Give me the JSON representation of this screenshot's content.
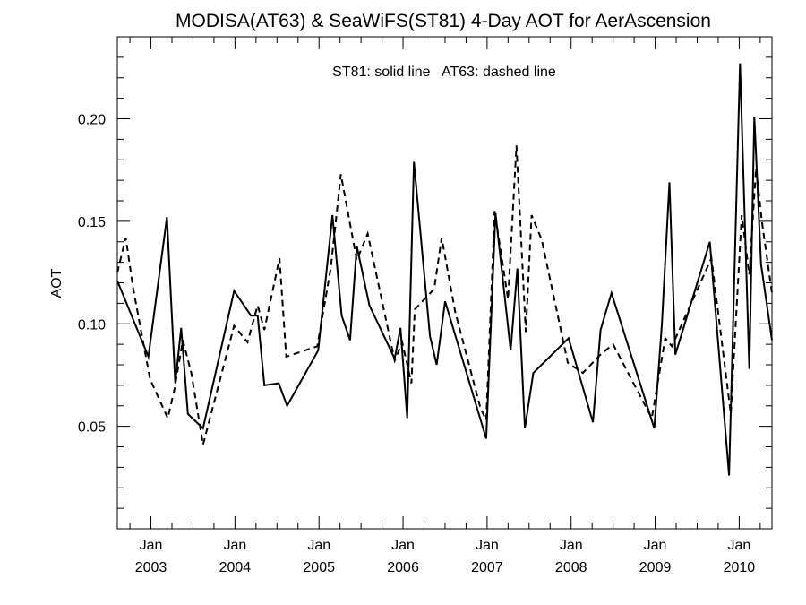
{
  "chart_data": {
    "type": "line",
    "title": "MODISA(AT63) & SeaWiFS(ST81) 4-Day AOT for AerAscension",
    "legend_text": "ST81: solid line   AT63: dashed line",
    "ylabel": "AOT",
    "xlabel": "",
    "xlim": [
      2002.6,
      2010.39
    ],
    "ylim": [
      0,
      0.24
    ],
    "y_ticks": [
      {
        "value": 0.05,
        "label": "0.05"
      },
      {
        "value": 0.1,
        "label": "0.10"
      },
      {
        "value": 0.15,
        "label": "0.15"
      },
      {
        "value": 0.2,
        "label": "0.20"
      }
    ],
    "x_ticks": [
      {
        "value": 2003.0,
        "month": "Jan",
        "year": "2003"
      },
      {
        "value": 2004.0,
        "month": "Jan",
        "year": "2004"
      },
      {
        "value": 2005.0,
        "month": "Jan",
        "year": "2005"
      },
      {
        "value": 2006.0,
        "month": "Jan",
        "year": "2006"
      },
      {
        "value": 2007.0,
        "month": "Jan",
        "year": "2007"
      },
      {
        "value": 2008.0,
        "month": "Jan",
        "year": "2008"
      },
      {
        "value": 2009.0,
        "month": "Jan",
        "year": "2009"
      },
      {
        "value": 2010.0,
        "month": "Jan",
        "year": "2010"
      }
    ],
    "series": [
      {
        "id": "ST81",
        "style": "solid",
        "color": "#000000",
        "x": [
          2002.6,
          2002.97,
          2003.19,
          2003.29,
          2003.36,
          2003.44,
          2003.62,
          2003.99,
          2004.19,
          2004.27,
          2004.35,
          2004.52,
          2004.62,
          2004.99,
          2005.16,
          2005.27,
          2005.37,
          2005.45,
          2005.6,
          2005.9,
          2005.97,
          2006.05,
          2006.13,
          2006.32,
          2006.4,
          2006.5,
          2006.99,
          2007.1,
          2007.28,
          2007.36,
          2007.45,
          2007.55,
          2007.97,
          2008.26,
          2008.35,
          2008.48,
          2008.99,
          2009.08,
          2009.17,
          2009.24,
          2009.65,
          2009.88,
          2010.01,
          2010.12,
          2010.18,
          2010.26,
          2010.39
        ],
        "values": [
          0.121,
          0.084,
          0.152,
          0.071,
          0.098,
          0.056,
          0.049,
          0.116,
          0.104,
          0.104,
          0.07,
          0.071,
          0.06,
          0.087,
          0.153,
          0.104,
          0.092,
          0.138,
          0.109,
          0.083,
          0.098,
          0.054,
          0.179,
          0.094,
          0.08,
          0.111,
          0.044,
          0.154,
          0.087,
          0.127,
          0.049,
          0.076,
          0.093,
          0.052,
          0.097,
          0.115,
          0.049,
          0.1,
          0.169,
          0.085,
          0.14,
          0.026,
          0.227,
          0.078,
          0.201,
          0.129,
          0.092
        ]
      },
      {
        "id": "AT63",
        "style": "dashed",
        "color": "#000000",
        "x": [
          2002.6,
          2002.7,
          2002.79,
          2002.99,
          2003.2,
          2003.28,
          2003.38,
          2003.48,
          2003.62,
          2003.99,
          2004.15,
          2004.27,
          2004.35,
          2004.53,
          2004.61,
          2004.98,
          2005.14,
          2005.26,
          2005.45,
          2005.58,
          2005.9,
          2005.99,
          2006.1,
          2006.14,
          2006.37,
          2006.46,
          2006.62,
          2006.92,
          2006.99,
          2007.09,
          2007.25,
          2007.35,
          2007.46,
          2007.53,
          2007.65,
          2007.96,
          2008.14,
          2008.35,
          2008.5,
          2008.96,
          2009.12,
          2009.2,
          2009.67,
          2009.9,
          2010.03,
          2010.12,
          2010.2,
          2010.27,
          2010.39
        ],
        "values": [
          0.125,
          0.142,
          0.117,
          0.073,
          0.054,
          0.068,
          0.092,
          0.076,
          0.041,
          0.099,
          0.091,
          0.109,
          0.097,
          0.132,
          0.084,
          0.089,
          0.127,
          0.173,
          0.131,
          0.144,
          0.082,
          0.091,
          0.071,
          0.107,
          0.117,
          0.142,
          0.106,
          0.059,
          0.053,
          0.155,
          0.112,
          0.187,
          0.096,
          0.153,
          0.141,
          0.081,
          0.076,
          0.085,
          0.09,
          0.054,
          0.093,
          0.089,
          0.132,
          0.056,
          0.153,
          0.124,
          0.176,
          0.15,
          0.115
        ]
      }
    ]
  }
}
